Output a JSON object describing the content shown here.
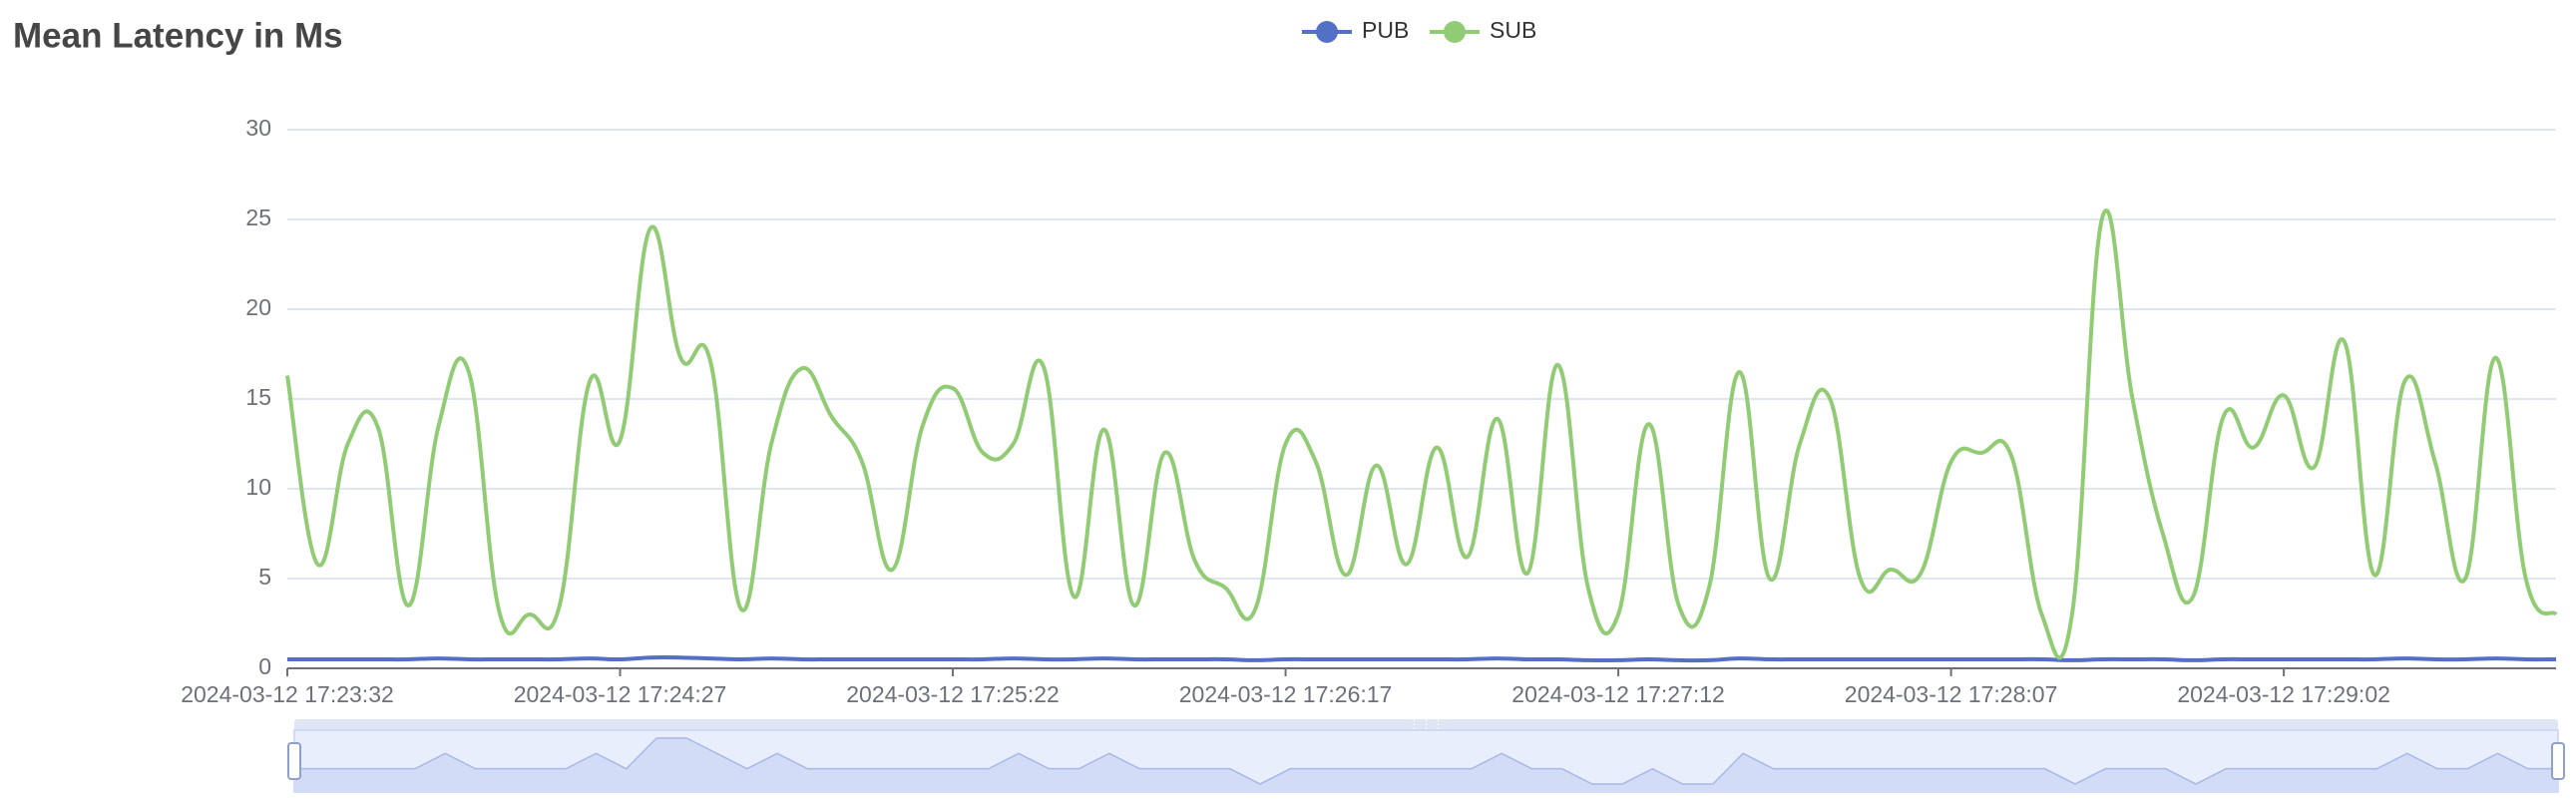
{
  "chart_data": {
    "type": "line",
    "title": "Mean Latency in Ms",
    "categories": [
      "2024-03-12 17:23:32",
      null,
      null,
      null,
      null,
      null,
      null,
      null,
      null,
      null,
      null,
      "2024-03-12 17:24:27",
      null,
      null,
      null,
      null,
      null,
      null,
      null,
      null,
      null,
      null,
      "2024-03-12 17:25:22",
      null,
      null,
      null,
      null,
      null,
      null,
      null,
      null,
      null,
      null,
      "2024-03-12 17:26:17",
      null,
      null,
      null,
      null,
      null,
      null,
      null,
      null,
      null,
      null,
      "2024-03-12 17:27:12",
      null,
      null,
      null,
      null,
      null,
      null,
      null,
      null,
      null,
      null,
      "2024-03-12 17:28:07",
      null,
      null,
      null,
      null,
      null,
      null,
      null,
      null,
      null,
      null,
      "2024-03-12 17:29:02",
      null,
      null,
      null,
      null,
      null,
      null,
      null,
      null,
      null
    ],
    "series": [
      {
        "name": "PUB",
        "color": "#5470c6",
        "values": [
          0.5,
          0.5,
          0.5,
          0.5,
          0.5,
          0.55,
          0.5,
          0.5,
          0.5,
          0.5,
          0.55,
          0.5,
          0.6,
          0.6,
          0.55,
          0.5,
          0.55,
          0.5,
          0.5,
          0.5,
          0.5,
          0.5,
          0.5,
          0.5,
          0.55,
          0.5,
          0.5,
          0.55,
          0.5,
          0.5,
          0.5,
          0.5,
          0.45,
          0.5,
          0.5,
          0.5,
          0.5,
          0.5,
          0.5,
          0.5,
          0.55,
          0.5,
          0.5,
          0.45,
          0.45,
          0.5,
          0.45,
          0.45,
          0.55,
          0.5,
          0.5,
          0.5,
          0.5,
          0.5,
          0.5,
          0.5,
          0.5,
          0.5,
          0.5,
          0.45,
          0.5,
          0.5,
          0.5,
          0.45,
          0.5,
          0.5,
          0.5,
          0.5,
          0.5,
          0.5,
          0.55,
          0.5,
          0.5,
          0.55,
          0.5,
          0.5
        ]
      },
      {
        "name": "SUB",
        "color": "#91cc75",
        "values": [
          16.3,
          5.8,
          12.5,
          13.4,
          3.5,
          13.5,
          16.5,
          3.2,
          3.0,
          3.5,
          16.0,
          12.7,
          24.5,
          17.3,
          17.0,
          3.3,
          12.5,
          16.7,
          14.0,
          11.5,
          5.5,
          13.5,
          15.6,
          12.0,
          12.5,
          16.8,
          4.0,
          13.3,
          3.5,
          12.0,
          6.0,
          4.5,
          3.3,
          12.5,
          11.5,
          5.2,
          11.3,
          5.8,
          12.3,
          6.2,
          13.9,
          5.3,
          16.9,
          4.5,
          3.0,
          13.6,
          3.5,
          4.5,
          16.5,
          5.0,
          12.5,
          15.0,
          5.0,
          5.5,
          5.3,
          11.5,
          12.0,
          11.8,
          3.0,
          3.0,
          25.1,
          15.0,
          7.5,
          4.0,
          14.0,
          12.3,
          15.2,
          11.2,
          18.2,
          5.2,
          16.0,
          11.5,
          5.0,
          17.3,
          5.0,
          3.0
        ]
      }
    ],
    "ylim": [
      0,
      30
    ],
    "yticks": [
      0,
      5,
      10,
      15,
      20,
      25,
      30
    ],
    "grid": true,
    "legend": "top"
  }
}
